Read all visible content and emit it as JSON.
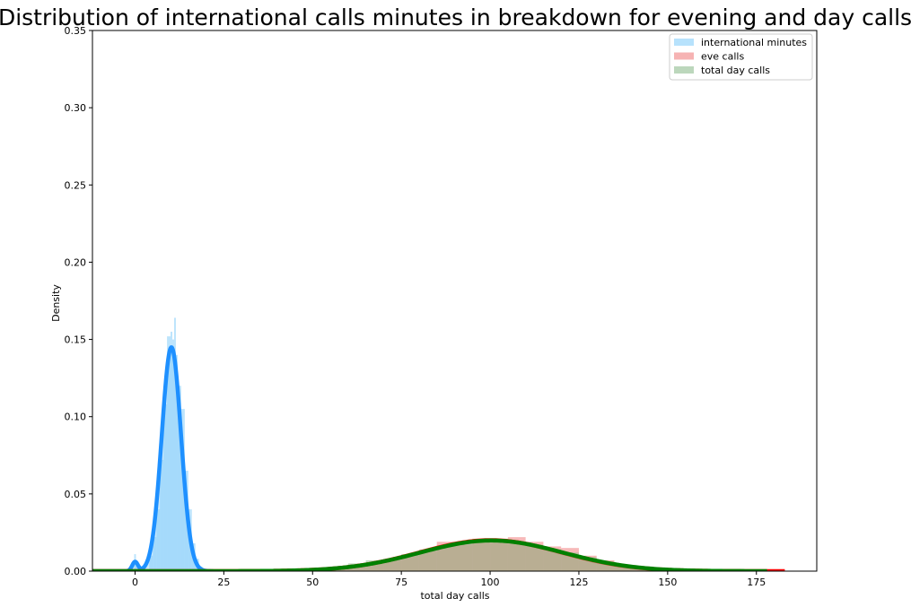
{
  "chart_data": {
    "type": "area",
    "title": "Distribution of international calls minutes in breakdown for evening and day calls",
    "xlabel": "total day calls",
    "ylabel": "Density",
    "xlim": [
      -12,
      192
    ],
    "ylim": [
      0,
      0.35
    ],
    "xticks": [
      0,
      25,
      50,
      75,
      100,
      125,
      150,
      175
    ],
    "yticks": [
      0.0,
      0.05,
      0.1,
      0.15,
      0.2,
      0.25,
      0.3,
      0.35
    ],
    "xtick_labels": [
      "0",
      "25",
      "50",
      "75",
      "100",
      "125",
      "150",
      "175"
    ],
    "ytick_labels": [
      "0.00",
      "0.05",
      "0.10",
      "0.15",
      "0.20",
      "0.25",
      "0.30",
      "0.35"
    ],
    "grid": false,
    "legend_position": "top-right",
    "series": [
      {
        "name": "international minutes",
        "kind": "hist+kde",
        "hist_color": "#87CEFA",
        "kde_color": "#1E90FF",
        "hist": {
          "bins": [
            [
              -0.25,
              0.25,
              0.011
            ],
            [
              0.25,
              1.0,
              0.003
            ],
            [
              4.0,
              5.0,
              0.01
            ],
            [
              5.0,
              6.0,
              0.022
            ],
            [
              6.0,
              7.0,
              0.04
            ],
            [
              7.0,
              8.0,
              0.072
            ],
            [
              8.0,
              9.0,
              0.108
            ],
            [
              9.0,
              10.0,
              0.152
            ],
            [
              10.0,
              10.5,
              0.155
            ],
            [
              10.5,
              11.0,
              0.15
            ],
            [
              11.0,
              11.5,
              0.164
            ],
            [
              11.5,
              12.0,
              0.14
            ],
            [
              12.0,
              13.0,
              0.12
            ],
            [
              13.0,
              14.0,
              0.105
            ],
            [
              14.0,
              15.0,
              0.065
            ],
            [
              15.0,
              16.0,
              0.04
            ],
            [
              16.0,
              17.0,
              0.018
            ],
            [
              17.0,
              18.0,
              0.008
            ],
            [
              18.0,
              19.0,
              0.003
            ]
          ]
        },
        "kde": {
          "components": [
            {
              "weight": 0.012,
              "mean": 0.0,
              "sd": 0.8
            },
            {
              "weight": 0.988,
              "mean": 10.24,
              "sd": 2.72
            }
          ],
          "x_range": [
            -12,
            22
          ]
        }
      },
      {
        "name": "eve calls",
        "kind": "hist+kde",
        "hist_color": "#F08080",
        "kde_color": "#FF0000",
        "hist": {
          "bins": [
            [
              50,
              55,
              0.001
            ],
            [
              55,
              60,
              0.002
            ],
            [
              60,
              65,
              0.003
            ],
            [
              65,
              70,
              0.005
            ],
            [
              70,
              75,
              0.007
            ],
            [
              75,
              80,
              0.01
            ],
            [
              80,
              85,
              0.013
            ],
            [
              85,
              90,
              0.019
            ],
            [
              90,
              95,
              0.017
            ],
            [
              95,
              100,
              0.021
            ],
            [
              100,
              105,
              0.021
            ],
            [
              105,
              110,
              0.022
            ],
            [
              110,
              115,
              0.019
            ],
            [
              115,
              120,
              0.016
            ],
            [
              120,
              125,
              0.015
            ],
            [
              125,
              130,
              0.01
            ],
            [
              130,
              135,
              0.007
            ],
            [
              135,
              140,
              0.004
            ],
            [
              140,
              145,
              0.003
            ],
            [
              145,
              150,
              0.001
            ],
            [
              150,
              160,
              0.001
            ]
          ]
        },
        "kde": {
          "components": [
            {
              "weight": 1.0,
              "mean": 100.1,
              "sd": 19.9
            }
          ],
          "x_range": [
            -12,
            183
          ]
        }
      },
      {
        "name": "total day calls",
        "kind": "hist+kde",
        "hist_color": "#8FBC8F",
        "kde_color": "#008000",
        "hist": {
          "bins": [
            [
              40,
              50,
              0.001
            ],
            [
              50,
              55,
              0.002
            ],
            [
              55,
              60,
              0.003
            ],
            [
              60,
              65,
              0.005
            ],
            [
              65,
              70,
              0.007
            ],
            [
              70,
              75,
              0.008
            ],
            [
              75,
              80,
              0.011
            ],
            [
              80,
              85,
              0.014
            ],
            [
              85,
              90,
              0.016
            ],
            [
              90,
              95,
              0.019
            ],
            [
              95,
              100,
              0.02
            ],
            [
              100,
              105,
              0.02
            ],
            [
              105,
              110,
              0.019
            ],
            [
              110,
              115,
              0.017
            ],
            [
              115,
              120,
              0.014
            ],
            [
              120,
              125,
              0.012
            ],
            [
              125,
              130,
              0.009
            ],
            [
              130,
              135,
              0.006
            ],
            [
              135,
              140,
              0.004
            ],
            [
              140,
              150,
              0.002
            ],
            [
              150,
              160,
              0.001
            ]
          ]
        },
        "kde": {
          "components": [
            {
              "weight": 1.0,
              "mean": 100.4,
              "sd": 20.1
            }
          ],
          "x_range": [
            -12,
            178
          ]
        }
      }
    ]
  }
}
